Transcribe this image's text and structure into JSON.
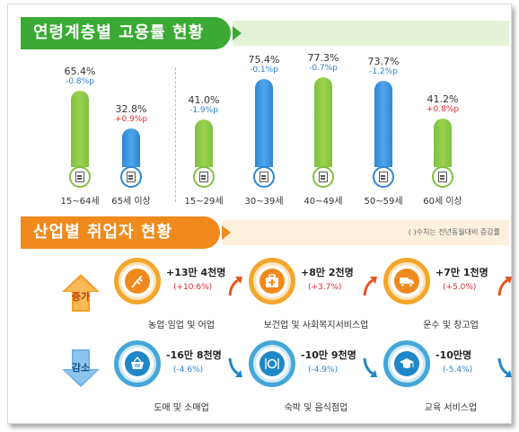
{
  "section1": {
    "title": "연령계층별 고용률 현황"
  },
  "section2": {
    "title": "산업별 취업자 현황",
    "note": "( )수치는 전년동월대비 증감률"
  },
  "colors": {
    "green": "#7ec13f",
    "blue": "#2e86d4",
    "orange": "#f08a1c",
    "increase": "#e0282e",
    "decrease": "#2e7fd0"
  },
  "chart_data": [
    {
      "type": "bar",
      "title": "연령계층별 고용률 현황",
      "categories": [
        "15~64세",
        "65세 이상",
        "15~29세",
        "30~39세",
        "40~49세",
        "50~59세",
        "60세 이상"
      ],
      "series": [
        {
          "values": [
            65.4,
            32.8,
            41.0,
            75.4,
            77.3,
            73.7,
            41.2
          ]
        }
      ],
      "value_labels": [
        "65.4%",
        "32.8%",
        "41.0%",
        "75.4%",
        "77.3%",
        "73.7%",
        "41.2%"
      ],
      "change_labels": [
        "-0.8%p",
        "+0.9%p",
        "-1.9%p",
        "-0.1%p",
        "-0.7%p",
        "-1.2%p",
        "+0.8%p"
      ],
      "changes": [
        -0.8,
        0.9,
        -1.9,
        -0.1,
        -0.7,
        -1.2,
        0.8
      ],
      "bar_colors": [
        "green",
        "blue",
        "green",
        "blue",
        "green",
        "blue",
        "green"
      ],
      "ylim": [
        0,
        100
      ],
      "grid": false
    },
    {
      "type": "table",
      "title": "산업별 취업자 현황",
      "groups": [
        {
          "label": "증가",
          "items": [
            {
              "name": "농업·임업 및 어업",
              "amount": "+13만 4천명",
              "rate": "(+10.6%)",
              "icon": "wheat-icon"
            },
            {
              "name": "보건업 및 사회복지서비스업",
              "amount": "+8만 2천명",
              "rate": "(+3.7%)",
              "icon": "medical-kit-icon"
            },
            {
              "name": "운수 및 창고업",
              "amount": "+7만 1천명",
              "rate": "(+5.0%)",
              "icon": "truck-icon"
            }
          ]
        },
        {
          "label": "감소",
          "items": [
            {
              "name": "도매 및 소매업",
              "amount": "-16만 8천명",
              "rate": "(-4.6%)",
              "icon": "basket-icon"
            },
            {
              "name": "숙박 및 음식점업",
              "amount": "-10만 9천명",
              "rate": "(-4.9%)",
              "icon": "dining-icon"
            },
            {
              "name": "교육 서비스업",
              "amount": "-10만명",
              "rate": "(-5.4%)",
              "icon": "graduation-cap-icon"
            }
          ]
        }
      ]
    }
  ]
}
